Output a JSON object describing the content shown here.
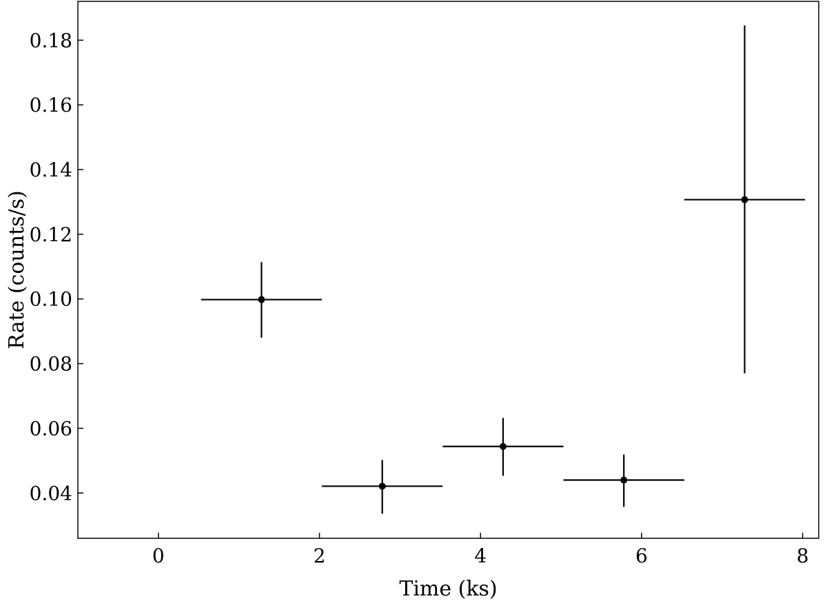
{
  "chart_data": {
    "type": "scatter",
    "title": "",
    "xlabel": "Time (ks)",
    "ylabel": "Rate (counts/s)",
    "xlim": [
      -1.0,
      8.2
    ],
    "ylim": [
      0.026,
      0.192
    ],
    "xticks": [
      0,
      2,
      4,
      6,
      8
    ],
    "xtick_labels": [
      "0",
      "2",
      "4",
      "6",
      "8"
    ],
    "yticks": [
      0.04,
      0.06,
      0.08,
      0.1,
      0.12,
      0.14,
      0.16,
      0.18
    ],
    "ytick_labels": [
      "0.04",
      "0.06",
      "0.08",
      "0.10",
      "0.12",
      "0.14",
      "0.16",
      "0.18"
    ],
    "grid": false,
    "legend": "none",
    "color": "#000000",
    "points": [
      {
        "x": 1.28,
        "y": 0.0998,
        "xerr": 0.75,
        "yerr_low": 0.0118,
        "yerr_high": 0.0116
      },
      {
        "x": 2.78,
        "y": 0.0421,
        "xerr": 0.75,
        "yerr_low": 0.0085,
        "yerr_high": 0.0081
      },
      {
        "x": 4.28,
        "y": 0.0544,
        "xerr": 0.75,
        "yerr_low": 0.0091,
        "yerr_high": 0.0088
      },
      {
        "x": 5.78,
        "y": 0.044,
        "xerr": 0.75,
        "yerr_low": 0.0083,
        "yerr_high": 0.0079
      },
      {
        "x": 7.28,
        "y": 0.1307,
        "xerr": 0.75,
        "yerr_low": 0.0537,
        "yerr_high": 0.0539
      }
    ]
  }
}
